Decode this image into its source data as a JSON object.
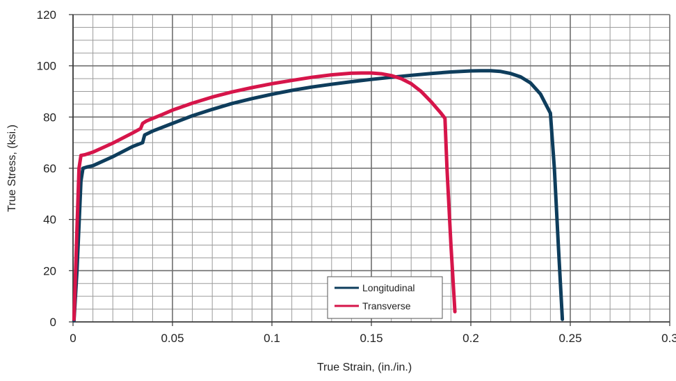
{
  "chart_data": {
    "type": "line",
    "title": "",
    "xlabel": "True Strain, (in./in.)",
    "ylabel": "True Stress, (ksi.)",
    "xlim": [
      0,
      0.3
    ],
    "ylim": [
      0,
      120
    ],
    "x_ticks": [
      0,
      0.05,
      0.1,
      0.15,
      0.2,
      0.25,
      0.3
    ],
    "x_tick_labels": [
      "0",
      "0.05",
      "0.1",
      "0.15",
      "0.2",
      "0.25",
      "0.3"
    ],
    "y_ticks": [
      0,
      20,
      40,
      60,
      80,
      100,
      120
    ],
    "y_tick_labels": [
      "0",
      "20",
      "40",
      "60",
      "80",
      "100",
      "120"
    ],
    "grid": true,
    "legend_position": "bottom-center",
    "series": [
      {
        "name": "Longitudinal",
        "color": "#0e3d5c",
        "x": [
          0.0005,
          0.002,
          0.004,
          0.005,
          0.007,
          0.01,
          0.02,
          0.03,
          0.035,
          0.0355,
          0.036,
          0.04,
          0.05,
          0.06,
          0.07,
          0.08,
          0.09,
          0.1,
          0.11,
          0.12,
          0.13,
          0.14,
          0.15,
          0.16,
          0.17,
          0.18,
          0.19,
          0.2,
          0.205,
          0.21,
          0.215,
          0.22,
          0.225,
          0.23,
          0.235,
          0.238,
          0.24,
          0.242,
          0.244,
          0.246
        ],
        "y": [
          0.5,
          20,
          55,
          60,
          60.5,
          61,
          64.5,
          68.5,
          70,
          71.5,
          73,
          74.5,
          77.5,
          80.5,
          83,
          85.3,
          87.2,
          88.9,
          90.4,
          91.7,
          92.8,
          93.8,
          94.7,
          95.5,
          96.3,
          97,
          97.6,
          98,
          98.1,
          98.1,
          97.8,
          97,
          95.7,
          93.3,
          89,
          84.5,
          81.5,
          60,
          30,
          1
        ]
      },
      {
        "name": "Transverse",
        "color": "#d6154a",
        "x": [
          0.0005,
          0.0015,
          0.003,
          0.004,
          0.006,
          0.01,
          0.02,
          0.03,
          0.034,
          0.035,
          0.037,
          0.045,
          0.05,
          0.06,
          0.07,
          0.08,
          0.09,
          0.1,
          0.11,
          0.12,
          0.13,
          0.14,
          0.145,
          0.15,
          0.155,
          0.16,
          0.165,
          0.17,
          0.175,
          0.18,
          0.185,
          0.187,
          0.188,
          0.19,
          0.192
        ],
        "y": [
          1,
          25,
          60,
          65,
          65.3,
          66.3,
          69.8,
          73.8,
          75.5,
          77.5,
          78.5,
          81,
          82.7,
          85.4,
          87.8,
          89.8,
          91.5,
          93,
          94.3,
          95.5,
          96.5,
          97.1,
          97.2,
          97.2,
          96.9,
          96.2,
          95,
          93,
          90,
          86,
          81.5,
          79.5,
          60,
          30,
          4
        ]
      }
    ]
  }
}
